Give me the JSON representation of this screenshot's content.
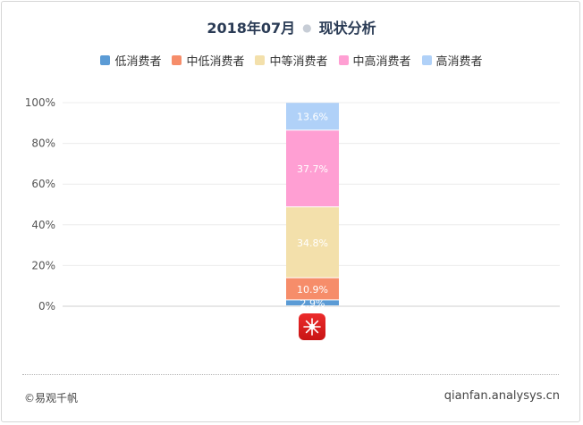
{
  "title": "2018年07月",
  "subtitle": "现状分析",
  "footer": {
    "left": "©易观千帆",
    "right": "qianfan.analysys.cn"
  },
  "colors": {
    "低消费者": "#5b9bd5",
    "中低消费者": "#f68d6a",
    "中等消费者": "#f3e0ab",
    "中高消费者": "#ff9fd3",
    "高消费者": "#b0d1f8"
  },
  "icon": "app-logo-icon",
  "chart_data": {
    "type": "bar",
    "stacked": true,
    "categories": [
      ""
    ],
    "ylim": [
      0,
      100
    ],
    "yticks": [
      "0%",
      "20%",
      "40%",
      "60%",
      "80%",
      "100%"
    ],
    "grid": true,
    "legend_position": "top-center",
    "series": [
      {
        "name": "低消费者",
        "values": [
          2.9
        ],
        "label": "2.9%"
      },
      {
        "name": "中低消费者",
        "values": [
          10.9
        ],
        "label": "10.9%"
      },
      {
        "name": "中等消费者",
        "values": [
          34.8
        ],
        "label": "34.8%"
      },
      {
        "name": "中高消费者",
        "values": [
          37.7
        ],
        "label": "37.7%"
      },
      {
        "name": "高消费者",
        "values": [
          13.6
        ],
        "label": "13.6%"
      }
    ]
  }
}
